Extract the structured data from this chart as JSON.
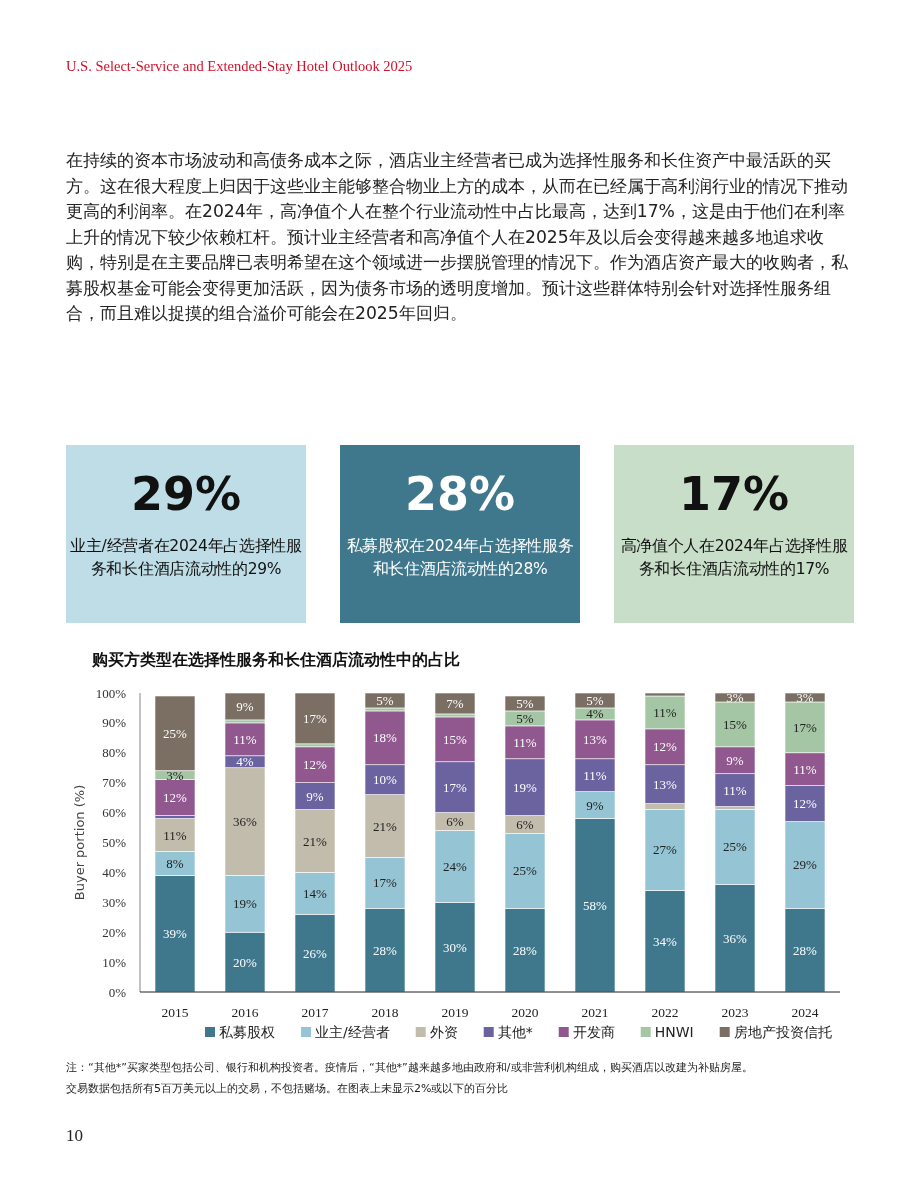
{
  "chart_data": [
    {
      "type": "other",
      "title": "U.S. Select-Service and Extended-Stay Hotel Outlook 2025",
      "annotations": [
        "在持续的资本市场波动和高债务成本之际，酒店业主经营者已成为选择性服务和长住资产中最活跃的买方。这在很大程度上归因于这些业主能够整合物业上方的成本，从而在已经属于高利润行业的情况下推动更高的利润率。在2024年，高净值个人在整个行业流动性中占比最高，达到17%，这是由于他们在利率上升的情况下较少依赖杠杆。预计业主经营者和高净值个人在2025年及以后会变得越来越多地追求收购，特别是在主要品牌已表明希望在这个领域进一步摆脱管理的情况下。作为酒店资产最大的收购者，私募股权基金可能会变得更加活跃，因为债务市场的透明度增加。预计这些群体特别会针对选择性服务组合，而且难以捉摸的组合溢价可能会在2025年回归。"
      ]
    },
    {
      "type": "other",
      "title": "29%",
      "annotations": [
        "业主/经营者在2024年占选择性服务和长住酒店流动性的29%"
      ]
    },
    {
      "type": "other",
      "title": "28%",
      "annotations": [
        "私募股权在2024年占选择性服务和长住酒店流动性的28%"
      ]
    },
    {
      "type": "other",
      "title": "17%",
      "annotations": [
        "高净值个人在2024年占选择性服务和长住酒店流动性的17%"
      ]
    },
    {
      "type": "bar",
      "stacked": true,
      "title": "购买方类型在选择性服务和长住酒店流动性中的占比",
      "ylabel": "Buyer portion (%)",
      "categories": [
        "2015",
        "2016",
        "2017",
        "2018",
        "2019",
        "2020",
        "2021",
        "2022",
        "2023",
        "2024"
      ],
      "ylim": [
        0,
        100
      ],
      "yticks": [
        {
          "value": 0,
          "label": "0%"
        },
        {
          "value": 10,
          "label": "10%"
        },
        {
          "value": 20,
          "label": "20%"
        },
        {
          "value": 30,
          "label": "30%"
        },
        {
          "value": 40,
          "label": "40%"
        },
        {
          "value": 50,
          "label": "50%"
        },
        {
          "value": 60,
          "label": "60%"
        },
        {
          "value": 70,
          "label": "70%"
        },
        {
          "value": 80,
          "label": "80%"
        },
        {
          "value": 90,
          "label": "90%"
        },
        {
          "value": 100,
          "label": "100%"
        }
      ],
      "legend": "bottom",
      "series": [
        {
          "name": "私募股权",
          "color": "#3f788c",
          "values": [
            39,
            20,
            26,
            28,
            30,
            28,
            58,
            34,
            36,
            28
          ],
          "value_labels": [
            "39%",
            "20%",
            "26%",
            "28%",
            "30%",
            "28%",
            "58%",
            "34%",
            "36%",
            "28%"
          ]
        },
        {
          "name": "业主/经营者",
          "color": "#95c4d4",
          "values": [
            8,
            19,
            14,
            17,
            24,
            25,
            9,
            27,
            25,
            29
          ],
          "value_labels": [
            "8%",
            "19%",
            "14%",
            "17%",
            "24%",
            "25%",
            "9%",
            "27%",
            "25%",
            "29%"
          ]
        },
        {
          "name": "外资",
          "color": "#c2bcad",
          "values": [
            11,
            36,
            21,
            21,
            6,
            6,
            0,
            2,
            1,
            0
          ],
          "value_labels": [
            "11%",
            "36%",
            "21%",
            "21%",
            "6%",
            "6%",
            null,
            null,
            null,
            null
          ]
        },
        {
          "name": "其他*",
          "color": "#6b63a0",
          "values": [
            1,
            4,
            9,
            10,
            17,
            19,
            11,
            13,
            11,
            12
          ],
          "value_labels": [
            null,
            "4%",
            "9%",
            "10%",
            "17%",
            "19%",
            "11%",
            "13%",
            "11%",
            "12%"
          ]
        },
        {
          "name": "开发商",
          "color": "#91578f",
          "values": [
            12,
            11,
            12,
            18,
            15,
            11,
            13,
            12,
            9,
            11
          ],
          "value_labels": [
            "12%",
            "11%",
            "12%",
            "18%",
            "15%",
            "11%",
            "13%",
            "12%",
            "9%",
            "11%"
          ]
        },
        {
          "name": "HNWI",
          "color": "#a5c6a4",
          "values": [
            3,
            1,
            1,
            1,
            1,
            5,
            4,
            11,
            15,
            17
          ],
          "value_labels": [
            "3%",
            null,
            null,
            null,
            null,
            "5%",
            "4%",
            "11%",
            "15%",
            "17%"
          ]
        },
        {
          "name": "房地产投资信托",
          "color": "#7b6e63",
          "values": [
            25,
            9,
            17,
            5,
            7,
            5,
            5,
            1,
            3,
            3
          ],
          "value_labels": [
            "25%",
            "9%",
            "17%",
            "5%",
            "7%",
            "5%",
            "5%",
            null,
            "3%",
            "3%"
          ]
        }
      ],
      "annotations": [
        "注：“其他*”买家类型包括公司、银行和机构投资者。疫情后，“其他*”越来越多地由政府和/或非营利机构组成，购买酒店以改建为补贴房屋。",
        "交易数据包括所有5百万美元以上的交易，不包括赌场。在图表上未显示2%或以下的百分比",
        "10"
      ]
    }
  ]
}
